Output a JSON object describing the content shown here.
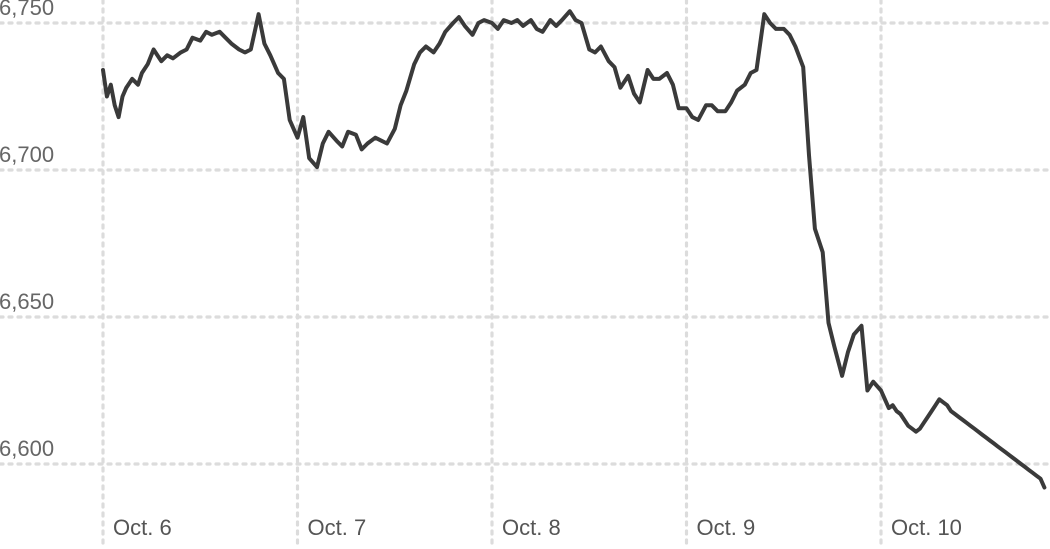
{
  "colors": {
    "line": "#3a3a3a",
    "grid": "#dcdcdc",
    "text": "#666666"
  },
  "chart_data": {
    "type": "line",
    "title": "",
    "xlabel": "",
    "ylabel": "",
    "ylim": [
      6590,
      6755
    ],
    "xlim": [
      -0.005,
      4.84
    ],
    "yticks": [
      6600,
      6650,
      6700,
      6750
    ],
    "ytick_labels": [
      "6,600",
      "6,650",
      "6,700",
      "6,750"
    ],
    "xticks": [
      0,
      1,
      2,
      3,
      4
    ],
    "xtick_labels": [
      "Oct. 6",
      "Oct. 7",
      "Oct. 8",
      "Oct. 9",
      "Oct. 10"
    ],
    "grid": true,
    "legend": "none",
    "series": [
      {
        "x": [
          0.0,
          0.02,
          0.04,
          0.06,
          0.08,
          0.1,
          0.12,
          0.15,
          0.18,
          0.2,
          0.23,
          0.26,
          0.3,
          0.33,
          0.36,
          0.4,
          0.43,
          0.46,
          0.5,
          0.53,
          0.56,
          0.6,
          0.63,
          0.66,
          0.7,
          0.73,
          0.76,
          0.8,
          0.83,
          0.86,
          0.9,
          0.93,
          0.96,
          1.0,
          1.03,
          1.06,
          1.1,
          1.13,
          1.16,
          1.2,
          1.23,
          1.26,
          1.3,
          1.33,
          1.36,
          1.4,
          1.43,
          1.46,
          1.5,
          1.53,
          1.56,
          1.6,
          1.63,
          1.66,
          1.7,
          1.73,
          1.76,
          1.8,
          1.83,
          1.86,
          1.9,
          1.93,
          1.96,
          2.0,
          2.03,
          2.06,
          2.1,
          2.13,
          2.16,
          2.2,
          2.23,
          2.26,
          2.3,
          2.33,
          2.36,
          2.4,
          2.43,
          2.46,
          2.5,
          2.53,
          2.56,
          2.6,
          2.63,
          2.66,
          2.7,
          2.73,
          2.76,
          2.8,
          2.83,
          2.86,
          2.9,
          2.93,
          2.96,
          3.0,
          3.03,
          3.06,
          3.1,
          3.13,
          3.16,
          3.2,
          3.23,
          3.26,
          3.3,
          3.33,
          3.36,
          3.4,
          3.43,
          3.46,
          3.5,
          3.53,
          3.56,
          3.6,
          3.63,
          3.66,
          3.7,
          3.73,
          3.76,
          3.8,
          3.83,
          3.86,
          3.9,
          3.93,
          3.96,
          4.0,
          4.02,
          4.04,
          4.06,
          4.08,
          4.1,
          4.12,
          4.14,
          4.16,
          4.18,
          4.2,
          4.22,
          4.24,
          4.26,
          4.28,
          4.3,
          4.32,
          4.34,
          4.36,
          4.38,
          4.4,
          4.42,
          4.44,
          4.46,
          4.48,
          4.5,
          4.52,
          4.54,
          4.56,
          4.58,
          4.6,
          4.62,
          4.64,
          4.66,
          4.68,
          4.7,
          4.72,
          4.74,
          4.76,
          4.78,
          4.8,
          4.82,
          4.84
        ],
        "y": [
          6734,
          6725,
          6729,
          6722,
          6718,
          6725,
          6728,
          6731,
          6729,
          6733,
          6736,
          6741,
          6737,
          6739,
          6738,
          6740,
          6741,
          6745,
          6744,
          6747,
          6746,
          6747,
          6745,
          6743,
          6741,
          6740,
          6741,
          6753,
          6743,
          6739,
          6733,
          6731,
          6717,
          6711,
          6718,
          6704,
          6701,
          6709,
          6713,
          6710,
          6708,
          6713,
          6712,
          6707,
          6709,
          6711,
          6710,
          6709,
          6714,
          6722,
          6727,
          6736,
          6740,
          6742,
          6740,
          6743,
          6747,
          6750,
          6752,
          6749,
          6746,
          6750,
          6751,
          6750,
          6748,
          6751,
          6750,
          6751,
          6749,
          6751,
          6748,
          6747,
          6751,
          6749,
          6751,
          6754,
          6751,
          6750,
          6741,
          6740,
          6742,
          6737,
          6735,
          6728,
          6732,
          6726,
          6723,
          6734,
          6731,
          6731,
          6733,
          6729,
          6721,
          6721,
          6718,
          6717,
          6722,
          6722,
          6720,
          6720,
          6723,
          6727,
          6729,
          6733,
          6734,
          6753,
          6750,
          6748,
          6748,
          6746,
          6742,
          6735,
          6705,
          6680,
          6672,
          6648,
          6640,
          6630,
          6638,
          6644,
          6647,
          6625,
          6628,
          6625,
          6622,
          6619,
          6620,
          6618,
          6617,
          6615,
          6613,
          6612,
          6611,
          6612,
          6614,
          6616,
          6618,
          6620,
          6622,
          6621,
          6620,
          6618,
          6617,
          6616,
          6615,
          6614,
          6613,
          6612,
          6611,
          6610,
          6609,
          6608,
          6607,
          6606,
          6605,
          6604,
          6603,
          6602,
          6601,
          6600,
          6599,
          6598,
          6597,
          6596,
          6595,
          6592
        ]
      }
    ]
  }
}
